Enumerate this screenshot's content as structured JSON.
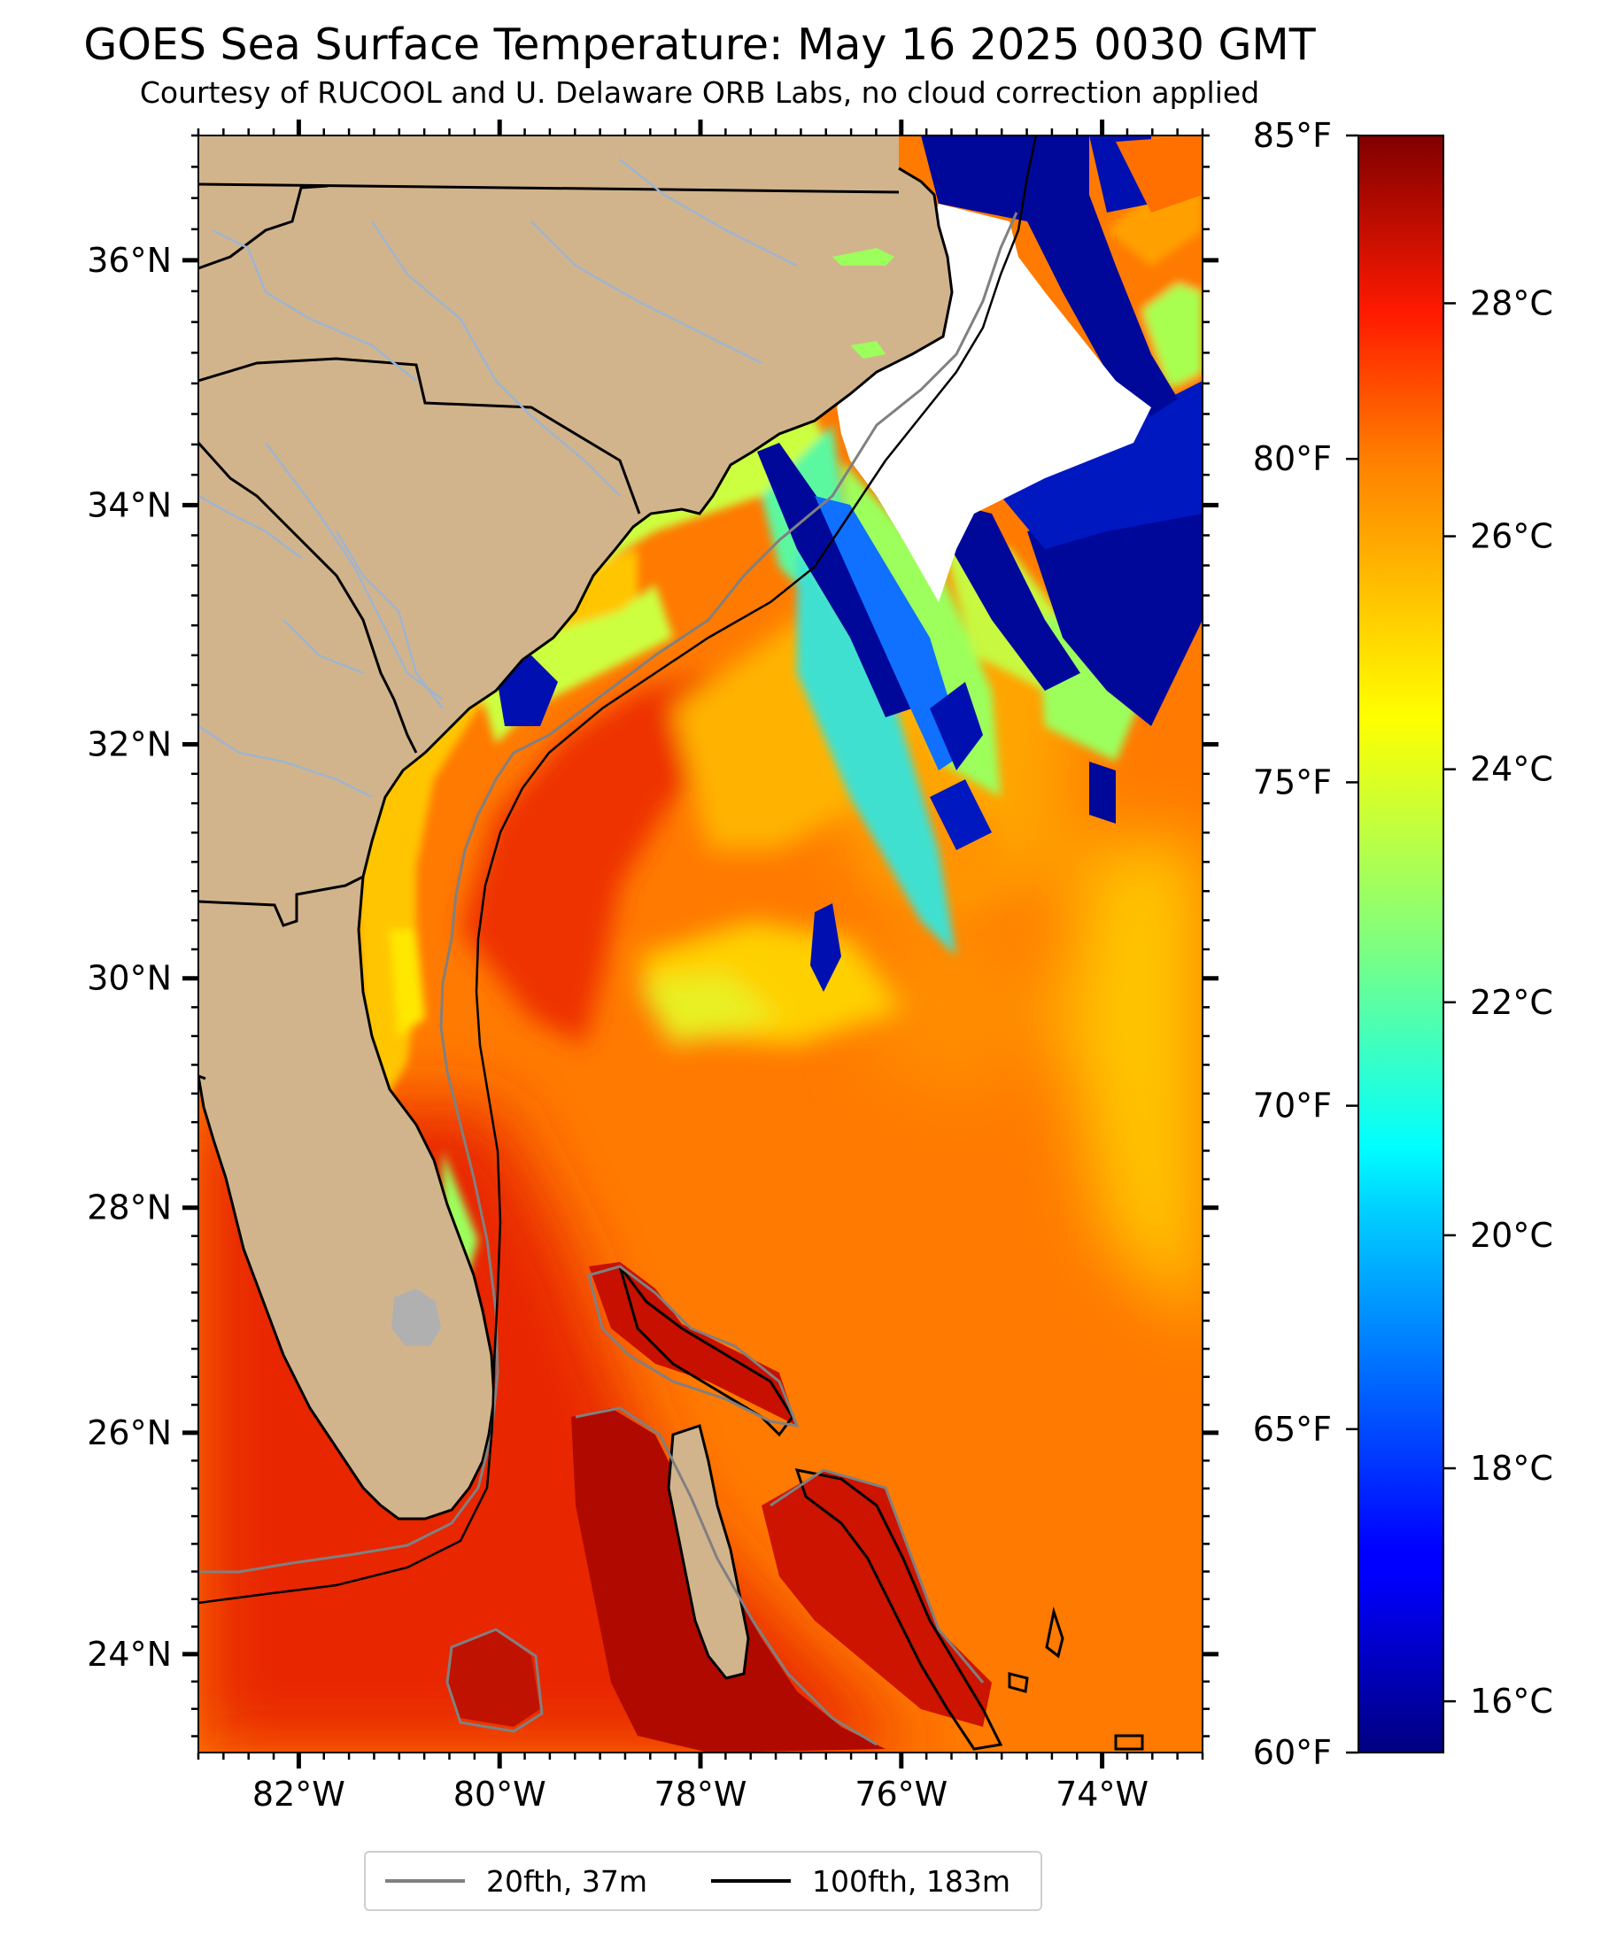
{
  "header": {
    "title": "GOES Sea Surface Temperature: May 16 2025 0030 GMT",
    "subtitle": "Courtesy of RUCOOL and U. Delaware ORB Labs, no cloud correction applied"
  },
  "map": {
    "extent": {
      "lon_min": -83.0,
      "lon_max": -73.0,
      "lat_min": 23.1,
      "lat_max": 37.0
    },
    "lat_ticks": [
      {
        "value": 24,
        "label": "24°N"
      },
      {
        "value": 26,
        "label": "26°N"
      },
      {
        "value": 28,
        "label": "28°N"
      },
      {
        "value": 30,
        "label": "30°N"
      },
      {
        "value": 32,
        "label": "32°N"
      },
      {
        "value": 34,
        "label": "34°N"
      },
      {
        "value": 36,
        "label": "36°N"
      }
    ],
    "lon_ticks": [
      {
        "value": -82,
        "label": "82°W"
      },
      {
        "value": -80,
        "label": "80°W"
      },
      {
        "value": -78,
        "label": "78°W"
      },
      {
        "value": -76,
        "label": "76°W"
      },
      {
        "value": -74,
        "label": "74°W"
      }
    ],
    "colors": {
      "land": "#d2b48c",
      "state_border": "#000000",
      "river": "#9fb4cf",
      "isobath_20fth": "#808080",
      "isobath_100fth": "#000000",
      "cloud": "#ffffff",
      "lake": "#b0b0b0"
    }
  },
  "colorbar": {
    "colormap": "jet",
    "celsius_range": [
      15.56,
      29.44
    ],
    "celsius_ticks": [
      {
        "value": 16,
        "label": "16°C"
      },
      {
        "value": 18,
        "label": "18°C"
      },
      {
        "value": 20,
        "label": "20°C"
      },
      {
        "value": 22,
        "label": "22°C"
      },
      {
        "value": 24,
        "label": "24°C"
      },
      {
        "value": 26,
        "label": "26°C"
      },
      {
        "value": 28,
        "label": "28°C"
      }
    ],
    "fahrenheit_range": [
      60,
      85
    ],
    "fahrenheit_ticks": [
      {
        "value": 60,
        "label": "60°F"
      },
      {
        "value": 65,
        "label": "65°F"
      },
      {
        "value": 70,
        "label": "70°F"
      },
      {
        "value": 75,
        "label": "75°F"
      },
      {
        "value": 80,
        "label": "80°F"
      },
      {
        "value": 85,
        "label": "85°F"
      }
    ]
  },
  "legend": {
    "items": [
      {
        "label": "20fth, 37m",
        "color": "#808080"
      },
      {
        "label": "100fth, 183m",
        "color": "#000000"
      }
    ]
  }
}
